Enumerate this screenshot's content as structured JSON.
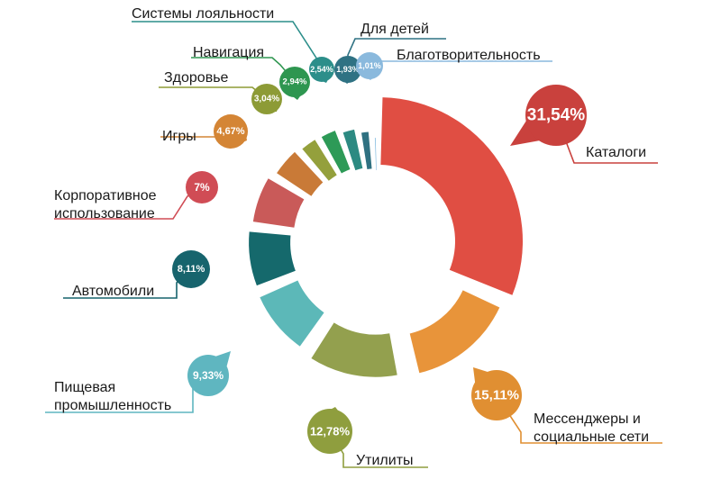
{
  "chart_data": {
    "type": "donut",
    "title": "",
    "segments": [
      {
        "name": "Каталоги",
        "value": 31.54,
        "value_label": "31,54%",
        "color": "#e04e43",
        "bubble_color": "#c9413d"
      },
      {
        "name": "Мессенджеры и социальные сети",
        "label_lines": [
          "Мессенджеры и",
          "социальные сети"
        ],
        "value": 15.11,
        "value_label": "15,11%",
        "color": "#e8943a",
        "bubble_color": "#e08f32"
      },
      {
        "name": "Утилиты",
        "value": 12.78,
        "value_label": "12,78%",
        "color": "#93a04e",
        "bubble_color": "#8f9e3e"
      },
      {
        "name": "Пищевая промышленность",
        "label_lines": [
          "Пищевая",
          "промышленность"
        ],
        "value": 9.33,
        "value_label": "9,33%",
        "color": "#5cb8b8",
        "bubble_color": "#5fb6c0"
      },
      {
        "name": "Автомобили",
        "value": 8.11,
        "value_label": "8,11%",
        "color": "#15696c",
        "bubble_color": "#17646d"
      },
      {
        "name": "Корпоративное использование",
        "label_lines": [
          "Корпоративное",
          "использование"
        ],
        "value": 7,
        "value_label": "7%",
        "color": "#c95a59",
        "bubble_color": "#d04c55"
      },
      {
        "name": "Игры",
        "value": 4.67,
        "value_label": "4,67%",
        "color": "#c97a37",
        "bubble_color": "#d48535"
      },
      {
        "name": "Здоровье",
        "value": 3.04,
        "value_label": "3,04%",
        "color": "#94a03c",
        "bubble_color": "#8d9b36"
      },
      {
        "name": "Навигация",
        "value": 2.94,
        "value_label": "2,94%",
        "color": "#2d9a57",
        "bubble_color": "#2e9650"
      },
      {
        "name": "Системы лояльности",
        "value": 2.54,
        "value_label": "2,54%",
        "color": "#2c8a82",
        "bubble_color": "#2c8e8a"
      },
      {
        "name": "Для детей",
        "value": 1.93,
        "value_label": "1,93%",
        "color": "#2f7181",
        "bubble_color": "#2f7283"
      },
      {
        "name": "Благотворительность",
        "value": 1.01,
        "value_label": "1,01%",
        "color": "#86bde0",
        "bubble_color": "#8ab9dd"
      }
    ]
  }
}
